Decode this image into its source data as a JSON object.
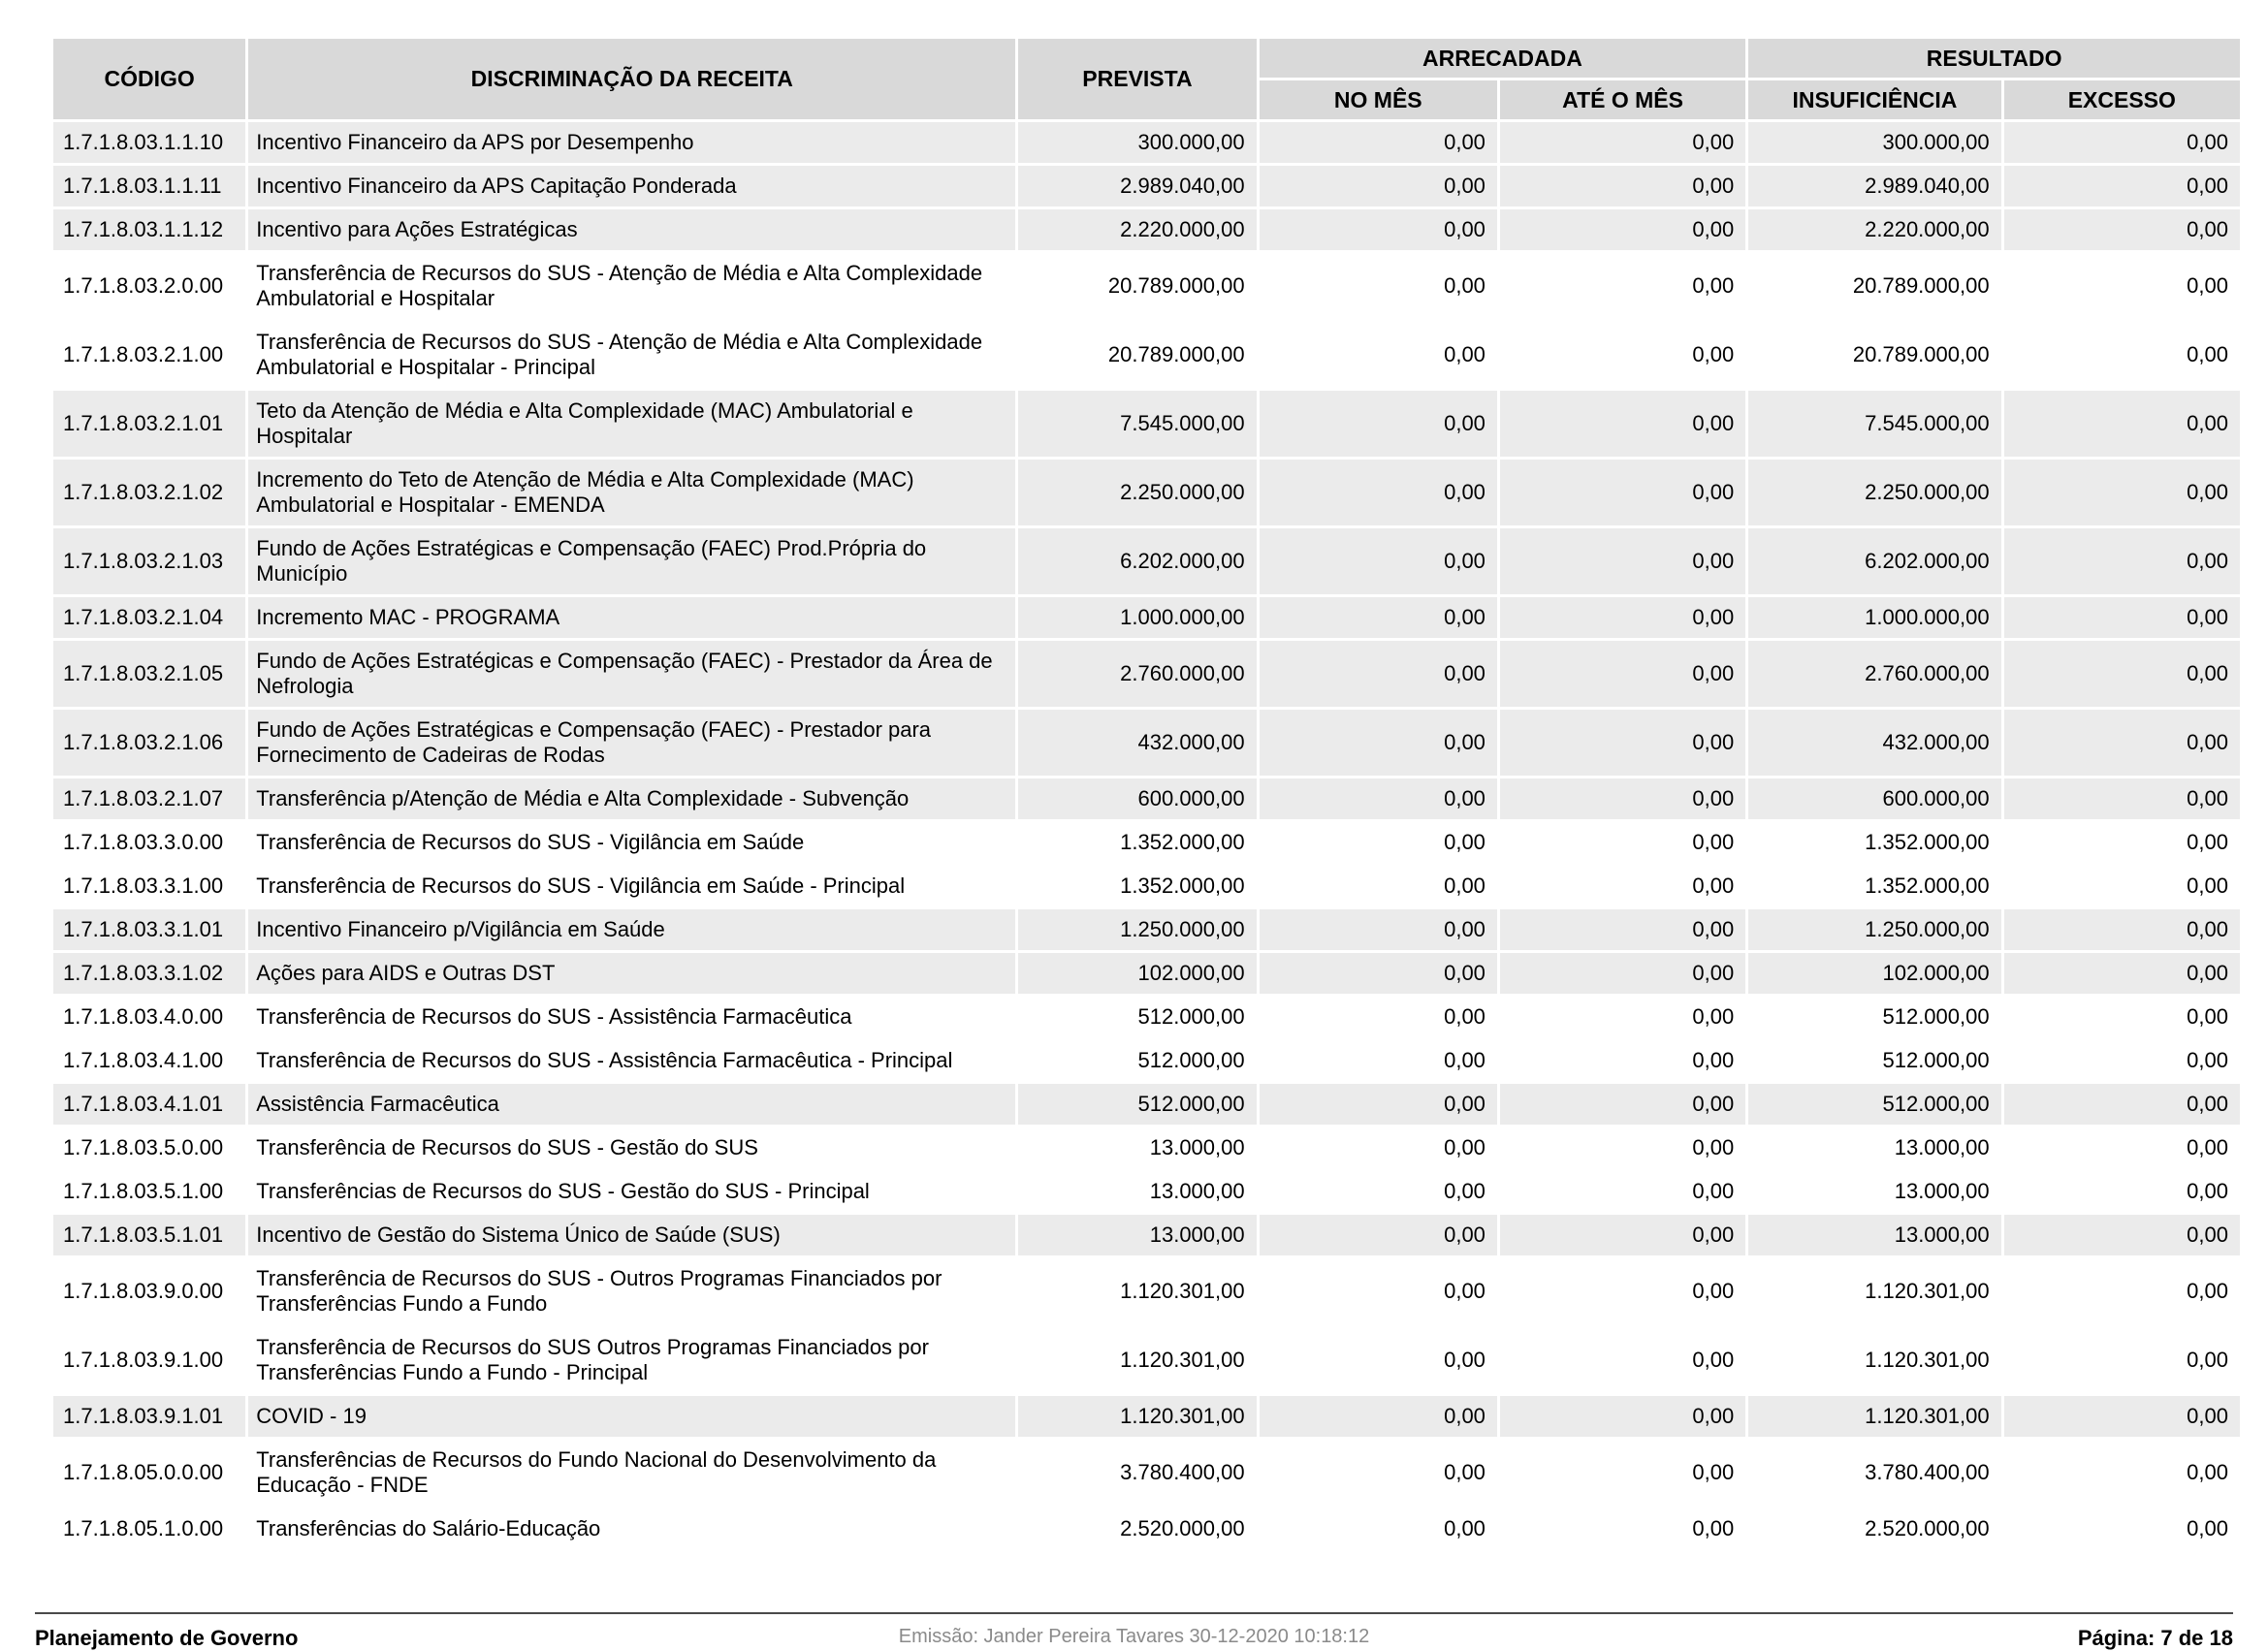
{
  "report": {
    "colors": {
      "header_bg": "#d9d9d9",
      "row_shaded_bg": "#ebebeb",
      "row_plain_bg": "#ffffff",
      "footer_center_text": "#8a8a8a"
    },
    "columns": {
      "codigo": "CÓDIGO",
      "discriminacao": "DISCRIMINAÇÃO DA RECEITA",
      "prevista": "PREVISTA",
      "arrecadada": "ARRECADADA",
      "no_mes": "NO MÊS",
      "ate_o_mes": "ATÉ O MÊS",
      "resultado": "RESULTADO",
      "insuficiencia": "INSUFICIÊNCIA",
      "excesso": "EXCESSO"
    },
    "rows": [
      {
        "code": "1.7.1.8.03.1.1.10",
        "desc": "Incentivo Financeiro da APS por Desempenho",
        "prevista": "300.000,00",
        "no_mes": "0,00",
        "ate_o_mes": "0,00",
        "insuficiencia": "300.000,00",
        "excesso": "0,00",
        "shaded": true,
        "lines": 1
      },
      {
        "code": "1.7.1.8.03.1.1.11",
        "desc": "Incentivo Financeiro da APS Capitação Ponderada",
        "prevista": "2.989.040,00",
        "no_mes": "0,00",
        "ate_o_mes": "0,00",
        "insuficiencia": "2.989.040,00",
        "excesso": "0,00",
        "shaded": true,
        "lines": 1
      },
      {
        "code": "1.7.1.8.03.1.1.12",
        "desc": "Incentivo para Ações Estratégicas",
        "prevista": "2.220.000,00",
        "no_mes": "0,00",
        "ate_o_mes": "0,00",
        "insuficiencia": "2.220.000,00",
        "excesso": "0,00",
        "shaded": true,
        "lines": 1
      },
      {
        "code": "1.7.1.8.03.2.0.00",
        "desc": "Transferência de Recursos do SUS - Atenção de Média e Alta Complexidade Ambulatorial e Hospitalar",
        "prevista": "20.789.000,00",
        "no_mes": "0,00",
        "ate_o_mes": "0,00",
        "insuficiencia": "20.789.000,00",
        "excesso": "0,00",
        "shaded": false,
        "lines": 2
      },
      {
        "code": "1.7.1.8.03.2.1.00",
        "desc": "Transferência de Recursos do SUS - Atenção de Média e Alta Complexidade Ambulatorial e Hospitalar - Principal",
        "prevista": "20.789.000,00",
        "no_mes": "0,00",
        "ate_o_mes": "0,00",
        "insuficiencia": "20.789.000,00",
        "excesso": "0,00",
        "shaded": false,
        "lines": 2
      },
      {
        "code": "1.7.1.8.03.2.1.01",
        "desc": "Teto da Atenção de Média e Alta Complexidade (MAC) Ambulatorial e Hospitalar",
        "prevista": "7.545.000,00",
        "no_mes": "0,00",
        "ate_o_mes": "0,00",
        "insuficiencia": "7.545.000,00",
        "excesso": "0,00",
        "shaded": true,
        "lines": 2
      },
      {
        "code": "1.7.1.8.03.2.1.02",
        "desc": "Incremento do Teto de Atenção de Média e Alta Complexidade (MAC) Ambulatorial e Hospitalar - EMENDA",
        "prevista": "2.250.000,00",
        "no_mes": "0,00",
        "ate_o_mes": "0,00",
        "insuficiencia": "2.250.000,00",
        "excesso": "0,00",
        "shaded": true,
        "lines": 2
      },
      {
        "code": "1.7.1.8.03.2.1.03",
        "desc": "Fundo de Ações Estratégicas e Compensação (FAEC) Prod.Própria do Município",
        "prevista": "6.202.000,00",
        "no_mes": "0,00",
        "ate_o_mes": "0,00",
        "insuficiencia": "6.202.000,00",
        "excesso": "0,00",
        "shaded": true,
        "lines": 2
      },
      {
        "code": "1.7.1.8.03.2.1.04",
        "desc": "Incremento MAC - PROGRAMA",
        "prevista": "1.000.000,00",
        "no_mes": "0,00",
        "ate_o_mes": "0,00",
        "insuficiencia": "1.000.000,00",
        "excesso": "0,00",
        "shaded": true,
        "lines": 1
      },
      {
        "code": "1.7.1.8.03.2.1.05",
        "desc": "Fundo de Ações Estratégicas e Compensação (FAEC) - Prestador da Área de Nefrologia",
        "prevista": "2.760.000,00",
        "no_mes": "0,00",
        "ate_o_mes": "0,00",
        "insuficiencia": "2.760.000,00",
        "excesso": "0,00",
        "shaded": true,
        "lines": 2
      },
      {
        "code": "1.7.1.8.03.2.1.06",
        "desc": "Fundo de Ações Estratégicas e Compensação (FAEC) - Prestador para Fornecimento de Cadeiras de Rodas",
        "prevista": "432.000,00",
        "no_mes": "0,00",
        "ate_o_mes": "0,00",
        "insuficiencia": "432.000,00",
        "excesso": "0,00",
        "shaded": true,
        "lines": 2
      },
      {
        "code": "1.7.1.8.03.2.1.07",
        "desc": "Transferência p/Atenção de Média e Alta Complexidade - Subvenção",
        "prevista": "600.000,00",
        "no_mes": "0,00",
        "ate_o_mes": "0,00",
        "insuficiencia": "600.000,00",
        "excesso": "0,00",
        "shaded": true,
        "lines": 1
      },
      {
        "code": "1.7.1.8.03.3.0.00",
        "desc": "Transferência de Recursos do SUS - Vigilância em Saúde",
        "prevista": "1.352.000,00",
        "no_mes": "0,00",
        "ate_o_mes": "0,00",
        "insuficiencia": "1.352.000,00",
        "excesso": "0,00",
        "shaded": false,
        "lines": 1
      },
      {
        "code": "1.7.1.8.03.3.1.00",
        "desc": "Transferência de Recursos do SUS - Vigilância em Saúde - Principal",
        "prevista": "1.352.000,00",
        "no_mes": "0,00",
        "ate_o_mes": "0,00",
        "insuficiencia": "1.352.000,00",
        "excesso": "0,00",
        "shaded": false,
        "lines": 1
      },
      {
        "code": "1.7.1.8.03.3.1.01",
        "desc": "Incentivo Financeiro p/Vigilância em Saúde",
        "prevista": "1.250.000,00",
        "no_mes": "0,00",
        "ate_o_mes": "0,00",
        "insuficiencia": "1.250.000,00",
        "excesso": "0,00",
        "shaded": true,
        "lines": 1
      },
      {
        "code": "1.7.1.8.03.3.1.02",
        "desc": "Ações para AIDS e Outras DST",
        "prevista": "102.000,00",
        "no_mes": "0,00",
        "ate_o_mes": "0,00",
        "insuficiencia": "102.000,00",
        "excesso": "0,00",
        "shaded": true,
        "lines": 1
      },
      {
        "code": "1.7.1.8.03.4.0.00",
        "desc": "Transferência de Recursos do SUS - Assistência Farmacêutica",
        "prevista": "512.000,00",
        "no_mes": "0,00",
        "ate_o_mes": "0,00",
        "insuficiencia": "512.000,00",
        "excesso": "0,00",
        "shaded": false,
        "lines": 1
      },
      {
        "code": "1.7.1.8.03.4.1.00",
        "desc": "Transferência de Recursos do SUS - Assistência Farmacêutica - Principal",
        "prevista": "512.000,00",
        "no_mes": "0,00",
        "ate_o_mes": "0,00",
        "insuficiencia": "512.000,00",
        "excesso": "0,00",
        "shaded": false,
        "lines": 1
      },
      {
        "code": "1.7.1.8.03.4.1.01",
        "desc": "Assistência Farmacêutica",
        "prevista": "512.000,00",
        "no_mes": "0,00",
        "ate_o_mes": "0,00",
        "insuficiencia": "512.000,00",
        "excesso": "0,00",
        "shaded": true,
        "lines": 1
      },
      {
        "code": "1.7.1.8.03.5.0.00",
        "desc": "Transferência de Recursos do SUS - Gestão do SUS",
        "prevista": "13.000,00",
        "no_mes": "0,00",
        "ate_o_mes": "0,00",
        "insuficiencia": "13.000,00",
        "excesso": "0,00",
        "shaded": false,
        "lines": 1
      },
      {
        "code": "1.7.1.8.03.5.1.00",
        "desc": "Transferências de Recursos do SUS - Gestão do SUS - Principal",
        "prevista": "13.000,00",
        "no_mes": "0,00",
        "ate_o_mes": "0,00",
        "insuficiencia": "13.000,00",
        "excesso": "0,00",
        "shaded": false,
        "lines": 1
      },
      {
        "code": "1.7.1.8.03.5.1.01",
        "desc": "Incentivo de Gestão do Sistema Único de Saúde (SUS)",
        "prevista": "13.000,00",
        "no_mes": "0,00",
        "ate_o_mes": "0,00",
        "insuficiencia": "13.000,00",
        "excesso": "0,00",
        "shaded": true,
        "lines": 1
      },
      {
        "code": "1.7.1.8.03.9.0.00",
        "desc": "Transferência de Recursos do SUS - Outros Programas Financiados por Transferências Fundo a Fundo",
        "prevista": "1.120.301,00",
        "no_mes": "0,00",
        "ate_o_mes": "0,00",
        "insuficiencia": "1.120.301,00",
        "excesso": "0,00",
        "shaded": false,
        "lines": 2
      },
      {
        "code": "1.7.1.8.03.9.1.00",
        "desc": "Transferência de Recursos do SUS  Outros Programas Financiados por Transferências Fundo a Fundo - Principal",
        "prevista": "1.120.301,00",
        "no_mes": "0,00",
        "ate_o_mes": "0,00",
        "insuficiencia": "1.120.301,00",
        "excesso": "0,00",
        "shaded": false,
        "lines": 2
      },
      {
        "code": "1.7.1.8.03.9.1.01",
        "desc": "COVID - 19",
        "prevista": "1.120.301,00",
        "no_mes": "0,00",
        "ate_o_mes": "0,00",
        "insuficiencia": "1.120.301,00",
        "excesso": "0,00",
        "shaded": true,
        "lines": 1
      },
      {
        "code": "1.7.1.8.05.0.0.00",
        "desc": "Transferências de Recursos do Fundo Nacional do Desenvolvimento da Educação - FNDE",
        "prevista": "3.780.400,00",
        "no_mes": "0,00",
        "ate_o_mes": "0,00",
        "insuficiencia": "3.780.400,00",
        "excesso": "0,00",
        "shaded": false,
        "lines": 2
      },
      {
        "code": "1.7.1.8.05.1.0.00",
        "desc": "Transferências do Salário-Educação",
        "prevista": "2.520.000,00",
        "no_mes": "0,00",
        "ate_o_mes": "0,00",
        "insuficiencia": "2.520.000,00",
        "excesso": "0,00",
        "shaded": false,
        "lines": 1
      }
    ],
    "footer": {
      "left": "Planejamento de Governo",
      "center": "Emissão: Jander Pereira Tavares 30-12-2020 10:18:12",
      "right": "Página: 7 de 18"
    }
  }
}
